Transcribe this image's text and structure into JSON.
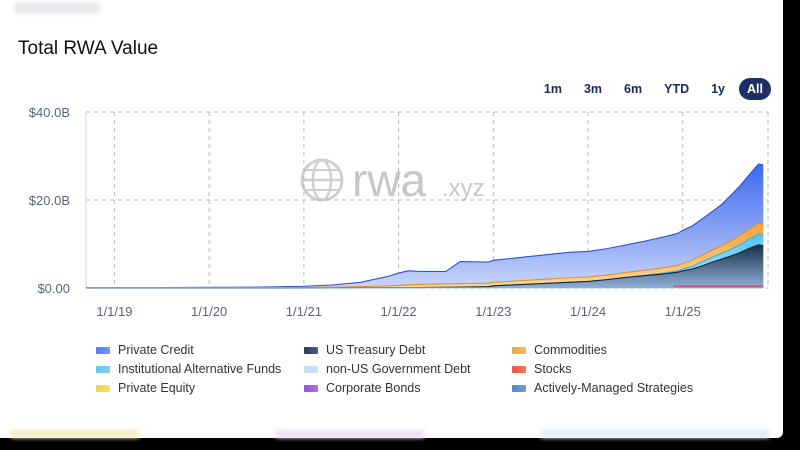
{
  "header": {
    "title": "Total RWA Value"
  },
  "range_buttons": [
    {
      "label": "1m",
      "active": false
    },
    {
      "label": "3m",
      "active": false
    },
    {
      "label": "6m",
      "active": false
    },
    {
      "label": "YTD",
      "active": false
    },
    {
      "label": "1y",
      "active": false
    },
    {
      "label": "All",
      "active": true
    }
  ],
  "watermark": {
    "name": "rwa",
    "suffix": ".xyz"
  },
  "colors": {
    "private_credit": "#4f7cf0",
    "us_treasury": "#1f3a5f",
    "commodities": "#f0a640",
    "institutional_alt_funds": "#5fc8f0",
    "non_us_gov_debt": "#c4d8ef",
    "stocks": "#f0553a",
    "private_equity": "#f5d24a",
    "corporate_bonds": "#9b4fe0",
    "actively_managed": "#4d88c8",
    "grid": "#b8b8b8",
    "axis_text": "#5a6478"
  },
  "chart_data": {
    "type": "area",
    "title": "Total RWA Value",
    "xlabel": "",
    "ylabel": "",
    "x_ticks": [
      "1/1/19",
      "1/1/20",
      "1/1/21",
      "1/1/22",
      "1/1/23",
      "1/1/24",
      "1/1/25"
    ],
    "y_ticks": [
      "$0.00",
      "$20.0B",
      "$40.0B"
    ],
    "y_unit": "billion USD",
    "ylim": [
      0,
      40
    ],
    "xlim": [
      2018.7,
      2025.9
    ],
    "grid": true,
    "legend_position": "bottom",
    "stacked": true,
    "x": [
      2018.7,
      2019.0,
      2019.5,
      2020.0,
      2020.5,
      2021.0,
      2021.3,
      2021.6,
      2021.75,
      2021.9,
      2022.0,
      2022.1,
      2022.2,
      2022.35,
      2022.5,
      2022.65,
      2022.8,
      2022.95,
      2023.0,
      2023.2,
      2023.4,
      2023.6,
      2023.8,
      2024.0,
      2024.2,
      2024.4,
      2024.6,
      2024.8,
      2024.95,
      2025.0,
      2025.1,
      2025.2,
      2025.3,
      2025.4,
      2025.5,
      2025.6,
      2025.7,
      2025.8,
      2025.85
    ],
    "series": [
      {
        "name": "US Treasury Debt",
        "values": [
          0,
          0,
          0,
          0,
          0,
          0.05,
          0.08,
          0.1,
          0.1,
          0.1,
          0.1,
          0.1,
          0.1,
          0.12,
          0.15,
          0.2,
          0.25,
          0.3,
          0.5,
          0.7,
          0.9,
          1.1,
          1.3,
          1.5,
          1.9,
          2.4,
          2.8,
          3.2,
          3.6,
          3.9,
          4.3,
          5.0,
          5.8,
          6.5,
          7.2,
          8.0,
          9.0,
          9.8,
          9.6
        ]
      },
      {
        "name": "Institutional Alternative Funds",
        "values": [
          0,
          0,
          0,
          0,
          0,
          0,
          0,
          0,
          0,
          0,
          0,
          0,
          0,
          0,
          0,
          0,
          0,
          0,
          0,
          0,
          0,
          0,
          0,
          0,
          0,
          0,
          0.1,
          0.2,
          0.3,
          0.4,
          0.6,
          0.9,
          1.1,
          1.3,
          1.5,
          1.8,
          2.1,
          2.4,
          2.4
        ]
      },
      {
        "name": "Commodities",
        "values": [
          0,
          0,
          0,
          0,
          0,
          0.05,
          0.1,
          0.2,
          0.3,
          0.4,
          0.5,
          0.6,
          0.7,
          0.75,
          0.8,
          0.8,
          0.8,
          0.8,
          0.8,
          0.85,
          0.9,
          0.95,
          1.0,
          1.0,
          1.05,
          1.1,
          1.15,
          1.2,
          1.25,
          1.3,
          1.4,
          1.5,
          1.6,
          1.7,
          1.9,
          2.1,
          2.3,
          2.5,
          2.5
        ]
      },
      {
        "name": "Private Credit",
        "values": [
          0.1,
          0.1,
          0.1,
          0.15,
          0.2,
          0.3,
          0.5,
          1.0,
          1.6,
          2.2,
          2.8,
          3.2,
          3.0,
          2.9,
          2.8,
          5.0,
          4.9,
          4.8,
          5.0,
          5.2,
          5.4,
          5.6,
          5.8,
          5.8,
          6.0,
          6.3,
          6.6,
          7.0,
          7.3,
          7.5,
          7.8,
          8.2,
          8.7,
          9.3,
          10.3,
          11.2,
          12.3,
          13.5,
          13.5
        ]
      }
    ]
  },
  "legend": [
    {
      "label": "Private Credit",
      "color": "#4f7cf0"
    },
    {
      "label": "US Treasury Debt",
      "color": "#1f3a5f"
    },
    {
      "label": "Commodities",
      "color": "#f0a640"
    },
    {
      "label": "Institutional Alternative Funds",
      "color": "#5fc8f0"
    },
    {
      "label": "non-US Government Debt",
      "color": "#c4d8ef"
    },
    {
      "label": "Stocks",
      "color": "#f0553a"
    },
    {
      "label": "Private Equity",
      "color": "#f5d24a"
    },
    {
      "label": "Corporate Bonds",
      "color": "#9b4fe0"
    },
    {
      "label": "Actively-Managed Strategies",
      "color": "#4d88c8"
    }
  ]
}
